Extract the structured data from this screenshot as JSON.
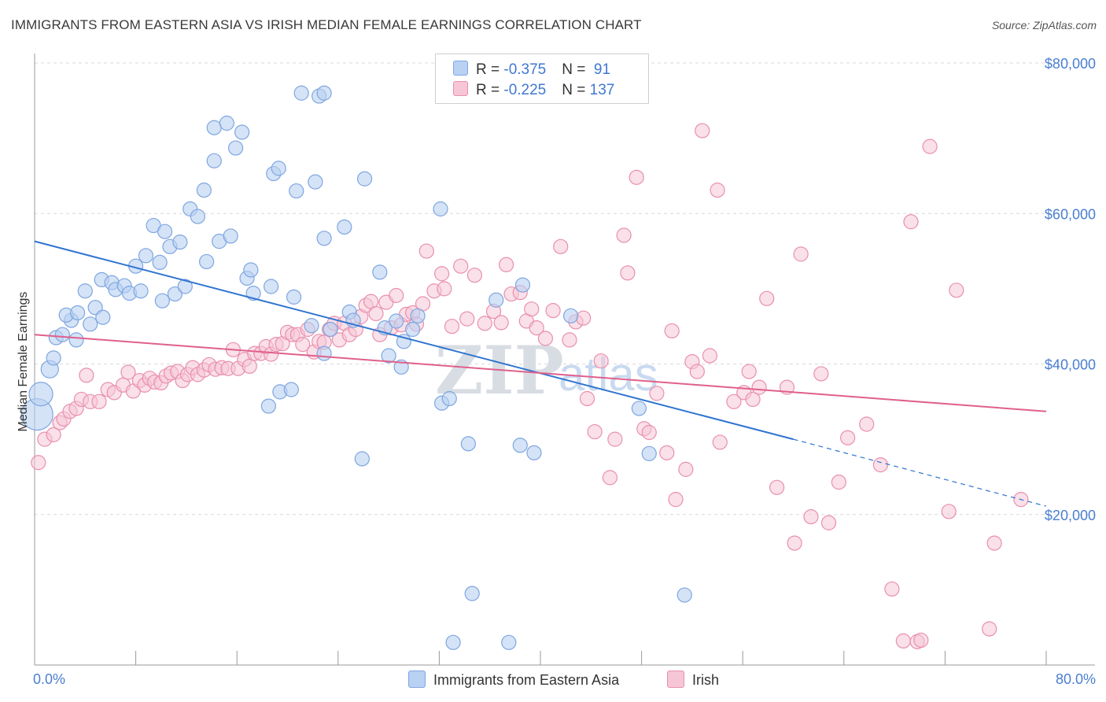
{
  "title": "IMMIGRANTS FROM EASTERN ASIA VS IRISH MEDIAN FEMALE EARNINGS CORRELATION CHART",
  "source": "Source: ZipAtlas.com",
  "watermark": {
    "zip": "ZIP",
    "atlas": "atlas"
  },
  "legend": {
    "series1": {
      "r_label": "R = ",
      "r_value": "-0.375",
      "n_label": "N = ",
      "n_value": " 91"
    },
    "series2": {
      "r_label": "R = ",
      "r_value": "-0.225",
      "n_label": "N = ",
      "n_value": "137"
    }
  },
  "colors": {
    "blue_fill": "#b9d1f2",
    "blue_stroke": "#7ea6e0",
    "blue_line": "#2f74d0",
    "pink_fill": "#f6c6d6",
    "pink_stroke": "#e98fae",
    "pink_line": "#e0608b",
    "grid": "#d9d9d9",
    "axis_text": "#4a7fd0"
  },
  "chart_data": {
    "type": "scatter",
    "title": "IMMIGRANTS FROM EASTERN ASIA VS IRISH MEDIAN FEMALE EARNINGS CORRELATION CHART",
    "xlabel": "",
    "ylabel": "Median Female Earnings",
    "xlim": [
      0,
      80
    ],
    "ylim": [
      0,
      80000
    ],
    "x_tick_labels": [
      "0.0%",
      "80.0%"
    ],
    "y_ticks": [
      20000,
      40000,
      60000,
      80000
    ],
    "y_tick_labels": [
      "$20,000",
      "$40,000",
      "$60,000",
      "$80,000"
    ],
    "grid": true,
    "legend_position": "top-center",
    "series": [
      {
        "name": "Immigrants from Eastern Asia",
        "color": "#b9d1f2",
        "trend": {
          "x": [
            0,
            60
          ],
          "y": [
            56300,
            30000
          ],
          "dashed_to": [
            80,
            21100
          ]
        },
        "points": [
          [
            0.2,
            33300
          ],
          [
            0.5,
            36000
          ],
          [
            1.2,
            39300
          ],
          [
            1.5,
            40800
          ],
          [
            1.7,
            43500
          ],
          [
            2.2,
            43900
          ],
          [
            2.9,
            45800
          ],
          [
            3.3,
            43200
          ],
          [
            2.5,
            46500
          ],
          [
            3.4,
            46800
          ],
          [
            4.0,
            49700
          ],
          [
            4.4,
            45300
          ],
          [
            4.8,
            47500
          ],
          [
            5.4,
            46200
          ],
          [
            5.3,
            51200
          ],
          [
            6.1,
            50800
          ],
          [
            6.4,
            49900
          ],
          [
            7.1,
            50400
          ],
          [
            7.5,
            49400
          ],
          [
            8.4,
            49700
          ],
          [
            8.0,
            53000
          ],
          [
            8.8,
            54400
          ],
          [
            9.4,
            58400
          ],
          [
            9.9,
            53500
          ],
          [
            10.1,
            48400
          ],
          [
            10.3,
            57600
          ],
          [
            10.7,
            55600
          ],
          [
            11.1,
            49300
          ],
          [
            11.5,
            56200
          ],
          [
            11.9,
            50300
          ],
          [
            12.3,
            60600
          ],
          [
            12.9,
            59600
          ],
          [
            13.4,
            63100
          ],
          [
            13.6,
            53600
          ],
          [
            14.2,
            67000
          ],
          [
            14.2,
            71400
          ],
          [
            14.6,
            56300
          ],
          [
            15.2,
            72000
          ],
          [
            15.5,
            57000
          ],
          [
            15.9,
            68700
          ],
          [
            16.4,
            70800
          ],
          [
            16.8,
            51400
          ],
          [
            17.1,
            52500
          ],
          [
            17.3,
            49400
          ],
          [
            18.5,
            34400
          ],
          [
            18.7,
            50300
          ],
          [
            18.9,
            65300
          ],
          [
            19.3,
            66000
          ],
          [
            19.4,
            36300
          ],
          [
            20.3,
            36600
          ],
          [
            20.5,
            48900
          ],
          [
            20.7,
            63000
          ],
          [
            21.1,
            76000
          ],
          [
            21.9,
            45100
          ],
          [
            22.2,
            64200
          ],
          [
            22.5,
            75600
          ],
          [
            22.9,
            41400
          ],
          [
            22.9,
            76000
          ],
          [
            22.9,
            56700
          ],
          [
            23.4,
            44600
          ],
          [
            24.5,
            58200
          ],
          [
            24.9,
            46900
          ],
          [
            25.2,
            45800
          ],
          [
            25.9,
            27400
          ],
          [
            26.1,
            64600
          ],
          [
            27.3,
            52200
          ],
          [
            27.7,
            44800
          ],
          [
            28.0,
            41100
          ],
          [
            28.6,
            45700
          ],
          [
            29.0,
            39600
          ],
          [
            29.2,
            43000
          ],
          [
            29.9,
            44600
          ],
          [
            30.3,
            46400
          ],
          [
            32.1,
            60600
          ],
          [
            32.2,
            34800
          ],
          [
            32.8,
            35400
          ],
          [
            33.1,
            3000
          ],
          [
            34.3,
            29400
          ],
          [
            34.6,
            9500
          ],
          [
            36.5,
            48500
          ],
          [
            37.5,
            3000
          ],
          [
            38.4,
            29200
          ],
          [
            38.6,
            50500
          ],
          [
            39.5,
            28200
          ],
          [
            42.4,
            46400
          ],
          [
            47.8,
            34100
          ],
          [
            48.6,
            28100
          ],
          [
            51.4,
            9300
          ]
        ]
      },
      {
        "name": "Irish",
        "color": "#f6c6d6",
        "trend": {
          "x": [
            0,
            80
          ],
          "y": [
            43900,
            33700
          ]
        },
        "points": [
          [
            0.3,
            26900
          ],
          [
            0.8,
            30000
          ],
          [
            1.5,
            30600
          ],
          [
            2.0,
            32200
          ],
          [
            2.3,
            32700
          ],
          [
            2.8,
            33700
          ],
          [
            3.3,
            34100
          ],
          [
            3.7,
            35300
          ],
          [
            4.1,
            38500
          ],
          [
            4.4,
            35000
          ],
          [
            5.1,
            35000
          ],
          [
            5.8,
            36600
          ],
          [
            6.3,
            36200
          ],
          [
            7.0,
            37200
          ],
          [
            7.4,
            38900
          ],
          [
            7.8,
            36400
          ],
          [
            8.3,
            37800
          ],
          [
            8.7,
            37200
          ],
          [
            9.1,
            38100
          ],
          [
            9.5,
            37600
          ],
          [
            10.0,
            37500
          ],
          [
            10.4,
            38400
          ],
          [
            10.8,
            38800
          ],
          [
            11.3,
            39000
          ],
          [
            11.7,
            37800
          ],
          [
            12.1,
            38600
          ],
          [
            12.5,
            39500
          ],
          [
            12.9,
            38600
          ],
          [
            13.4,
            39200
          ],
          [
            13.8,
            39900
          ],
          [
            14.3,
            39300
          ],
          [
            14.8,
            39500
          ],
          [
            15.3,
            39400
          ],
          [
            15.7,
            41900
          ],
          [
            16.1,
            39400
          ],
          [
            16.6,
            40600
          ],
          [
            17.0,
            39700
          ],
          [
            17.4,
            41400
          ],
          [
            17.9,
            41400
          ],
          [
            18.3,
            42300
          ],
          [
            18.7,
            41300
          ],
          [
            19.1,
            42600
          ],
          [
            19.6,
            42700
          ],
          [
            20.0,
            44200
          ],
          [
            20.4,
            43900
          ],
          [
            20.8,
            43900
          ],
          [
            21.2,
            42600
          ],
          [
            21.6,
            44600
          ],
          [
            22.1,
            41600
          ],
          [
            22.5,
            43000
          ],
          [
            22.9,
            42900
          ],
          [
            23.3,
            44600
          ],
          [
            23.7,
            45400
          ],
          [
            24.1,
            43200
          ],
          [
            24.5,
            45400
          ],
          [
            24.9,
            43900
          ],
          [
            25.4,
            44600
          ],
          [
            25.8,
            46300
          ],
          [
            26.2,
            47800
          ],
          [
            26.6,
            48300
          ],
          [
            27.0,
            46700
          ],
          [
            27.3,
            43900
          ],
          [
            27.8,
            48200
          ],
          [
            28.2,
            44800
          ],
          [
            28.6,
            49100
          ],
          [
            29.0,
            45200
          ],
          [
            29.4,
            46600
          ],
          [
            29.9,
            46800
          ],
          [
            30.2,
            45300
          ],
          [
            30.7,
            48000
          ],
          [
            31.0,
            55000
          ],
          [
            31.6,
            49700
          ],
          [
            32.2,
            52000
          ],
          [
            32.4,
            50000
          ],
          [
            33.0,
            45000
          ],
          [
            33.7,
            53000
          ],
          [
            34.2,
            46000
          ],
          [
            34.8,
            51800
          ],
          [
            35.6,
            45400
          ],
          [
            36.3,
            47000
          ],
          [
            36.9,
            45500
          ],
          [
            37.3,
            53200
          ],
          [
            37.7,
            49300
          ],
          [
            38.4,
            49500
          ],
          [
            38.9,
            45700
          ],
          [
            39.3,
            47300
          ],
          [
            39.7,
            44800
          ],
          [
            40.4,
            43400
          ],
          [
            41.0,
            47100
          ],
          [
            41.6,
            55600
          ],
          [
            42.3,
            43200
          ],
          [
            42.8,
            45600
          ],
          [
            43.4,
            46100
          ],
          [
            43.7,
            35400
          ],
          [
            44.3,
            31000
          ],
          [
            44.8,
            40400
          ],
          [
            45.5,
            24900
          ],
          [
            45.9,
            30000
          ],
          [
            46.6,
            57100
          ],
          [
            46.9,
            52100
          ],
          [
            47.6,
            64800
          ],
          [
            48.2,
            31400
          ],
          [
            48.6,
            30900
          ],
          [
            49.2,
            36100
          ],
          [
            50.0,
            28200
          ],
          [
            50.4,
            44400
          ],
          [
            50.7,
            22000
          ],
          [
            51.5,
            26000
          ],
          [
            52.0,
            40300
          ],
          [
            52.4,
            39000
          ],
          [
            52.8,
            71000
          ],
          [
            53.4,
            41100
          ],
          [
            54.0,
            63100
          ],
          [
            54.2,
            29600
          ],
          [
            55.3,
            35000
          ],
          [
            56.1,
            36200
          ],
          [
            56.5,
            39000
          ],
          [
            56.8,
            35300
          ],
          [
            57.3,
            36900
          ],
          [
            57.9,
            48700
          ],
          [
            58.7,
            23600
          ],
          [
            59.5,
            36900
          ],
          [
            60.1,
            16200
          ],
          [
            60.6,
            54600
          ],
          [
            61.4,
            19700
          ],
          [
            62.2,
            38700
          ],
          [
            62.8,
            18900
          ],
          [
            63.6,
            24300
          ],
          [
            64.3,
            30200
          ],
          [
            65.8,
            32000
          ],
          [
            66.9,
            26600
          ],
          [
            67.8,
            10100
          ],
          [
            68.7,
            3200
          ],
          [
            69.3,
            58900
          ],
          [
            69.8,
            3100
          ],
          [
            70.1,
            3300
          ],
          [
            70.8,
            68900
          ],
          [
            72.3,
            20400
          ],
          [
            72.9,
            49800
          ],
          [
            75.5,
            4800
          ],
          [
            75.9,
            16200
          ],
          [
            78.0,
            22000
          ]
        ]
      }
    ]
  },
  "bottom_legend": {
    "series1": "Immigrants from Eastern Asia",
    "series2": "Irish"
  }
}
